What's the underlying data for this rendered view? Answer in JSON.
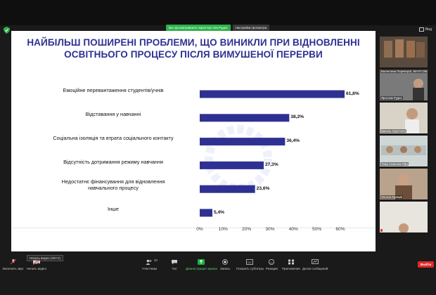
{
  "window": {
    "banner_sharing": "Вы просматриваете экран Кун пан Рудне",
    "banner_view_options": "Настройки просмотра",
    "view_button": "Вид"
  },
  "slide": {
    "title_line1": "НАЙБІЛЬШ ПОШИРЕНІ ПРОБЛЕМИ, ЩО ВИНИКЛИ ПРИ ВІДНОВЛЕННІ",
    "title_line2": "ОСВІТНЬОГО ПРОЦЕСУ ПІСЛЯ ВИМУШЕНОЇ ПЕРЕРВИ"
  },
  "chart_data": {
    "type": "bar",
    "orientation": "horizontal",
    "categories": [
      "Емоційне перевантаження студентів/учнів",
      "Відставання у навчанні",
      "Соціальна ізоляція та втрата соціального контакту",
      "Відсутність дотримання режиму навчання",
      "Недостатнє фінансування для відновлення навчального процесу",
      "Інше"
    ],
    "category_lines": [
      [
        "Емоційне перевантаження студентів/учнів"
      ],
      [
        "Відставання у навчанні"
      ],
      [
        "Соціальна ізоляція та втрата соціального контакту"
      ],
      [
        "Відсутність дотримання режиму навчання"
      ],
      [
        "Недостатнє фінансування для відновлення",
        "навчального процесу"
      ],
      [
        "Інше"
      ]
    ],
    "values": [
      61.8,
      38.2,
      36.4,
      27.3,
      23.6,
      5.4
    ],
    "value_labels": [
      "61,8%",
      "38,2%",
      "36,4%",
      "27,3%",
      "23,6%",
      "5,4%"
    ],
    "xlim": [
      0,
      60
    ],
    "ticks": [
      "0%",
      "10%",
      "20%",
      "30%",
      "40%",
      "50%",
      "60%"
    ],
    "bar_color": "#2e3192",
    "grid": false
  },
  "participants": [
    {
      "name": ""
    },
    {
      "name": "Валентина Переверзіт, МАУП Оle..."
    },
    {
      "name": "Ярослав Руднє"
    },
    {
      "name": "Василь Скретонічі"
    },
    {
      "name": "Тема Семенюк РДЦ"
    },
    {
      "name": "Оксана Кравців"
    },
    {
      "name": ""
    }
  ],
  "toolbar": {
    "tooltip": "Начать видео (Alt+V)",
    "items": [
      {
        "label": "Включить звук",
        "icon": "mic-muted-icon"
      },
      {
        "label": "Начать видео",
        "icon": "video-off-icon"
      },
      {
        "label": "Участники",
        "icon": "participants-icon",
        "count": "43"
      },
      {
        "label": "Чат",
        "icon": "chat-icon"
      },
      {
        "label": "Демонстрация экрана",
        "icon": "share-screen-icon"
      },
      {
        "label": "Запись",
        "icon": "record-icon"
      },
      {
        "label": "Показать субтитры",
        "icon": "captions-icon"
      },
      {
        "label": "Реакции",
        "icon": "reactions-icon"
      },
      {
        "label": "Приложения",
        "icon": "apps-icon"
      },
      {
        "label": "Доски сообщений",
        "icon": "whiteboard-icon"
      }
    ],
    "end_label": "Выйти"
  },
  "colors": {
    "title": "#2e3192",
    "accent_logo": "#2a3de0",
    "share_green": "#19b13e",
    "end_red": "#e02828"
  }
}
